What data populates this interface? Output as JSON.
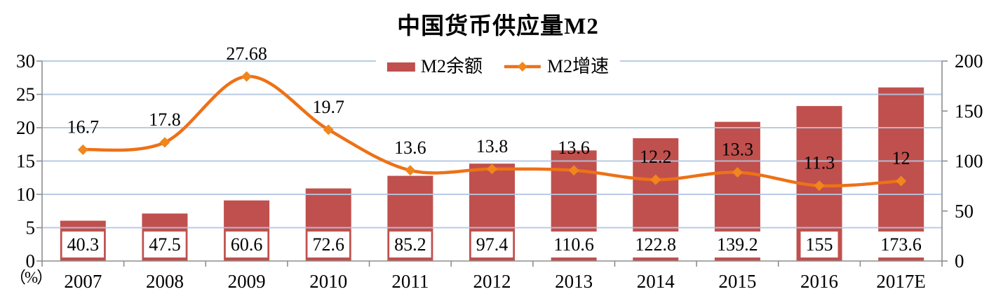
{
  "title": "中国货币供应量M2",
  "legend": {
    "items": [
      {
        "label": "M2余额",
        "series": "bar"
      },
      {
        "label": "M2增速",
        "series": "line"
      }
    ]
  },
  "colors": {
    "bar": "#C0504D",
    "line": "#ED7117",
    "marker": "#F0861C",
    "grid": "#B2C6E2",
    "axis": "#8E8E8E",
    "label_box_bg": "#FFFFFF",
    "text": "#000000"
  },
  "chart_data": {
    "type": "combo-bar-line",
    "title": "中国货币供应量M2",
    "categories": [
      "2007",
      "2008",
      "2009",
      "2010",
      "2011",
      "2012",
      "2013",
      "2014",
      "2015",
      "2016",
      "2017E"
    ],
    "series": [
      {
        "name": "M2余额",
        "type": "bar",
        "axis": "right",
        "values": [
          40.3,
          47.5,
          60.6,
          72.6,
          85.2,
          97.4,
          110.6,
          122.8,
          139.2,
          155,
          173.6
        ],
        "labels": [
          "40.3",
          "47.5",
          "60.6",
          "72.6",
          "85.2",
          "97.4",
          "110.6",
          "122.8",
          "139.2",
          "155",
          "173.6"
        ]
      },
      {
        "name": "M2增速",
        "type": "line",
        "axis": "left",
        "values": [
          16.7,
          17.8,
          27.68,
          19.7,
          13.6,
          13.8,
          13.6,
          12.2,
          13.3,
          11.3,
          12
        ],
        "labels": [
          "16.7",
          "17.8",
          "27.68",
          "19.7",
          "13.6",
          "13.8",
          "13.6",
          "12.2",
          "13.3",
          "11.3",
          "12"
        ]
      }
    ],
    "ylim_left": [
      0,
      30
    ],
    "ylim_right": [
      0,
      200
    ],
    "left_ticks": [
      0,
      5,
      10,
      15,
      20,
      25,
      30
    ],
    "left_tick_labels": [
      "0",
      "5",
      "10",
      "15",
      "20",
      "25",
      "30"
    ],
    "right_ticks": [
      0,
      50,
      100,
      150,
      200
    ],
    "right_tick_labels": [
      "0",
      "50",
      "100",
      "150",
      "200"
    ],
    "left_axis_unit": "（%）",
    "grid": true,
    "smooth_line": true,
    "legend_position": "top-center"
  }
}
